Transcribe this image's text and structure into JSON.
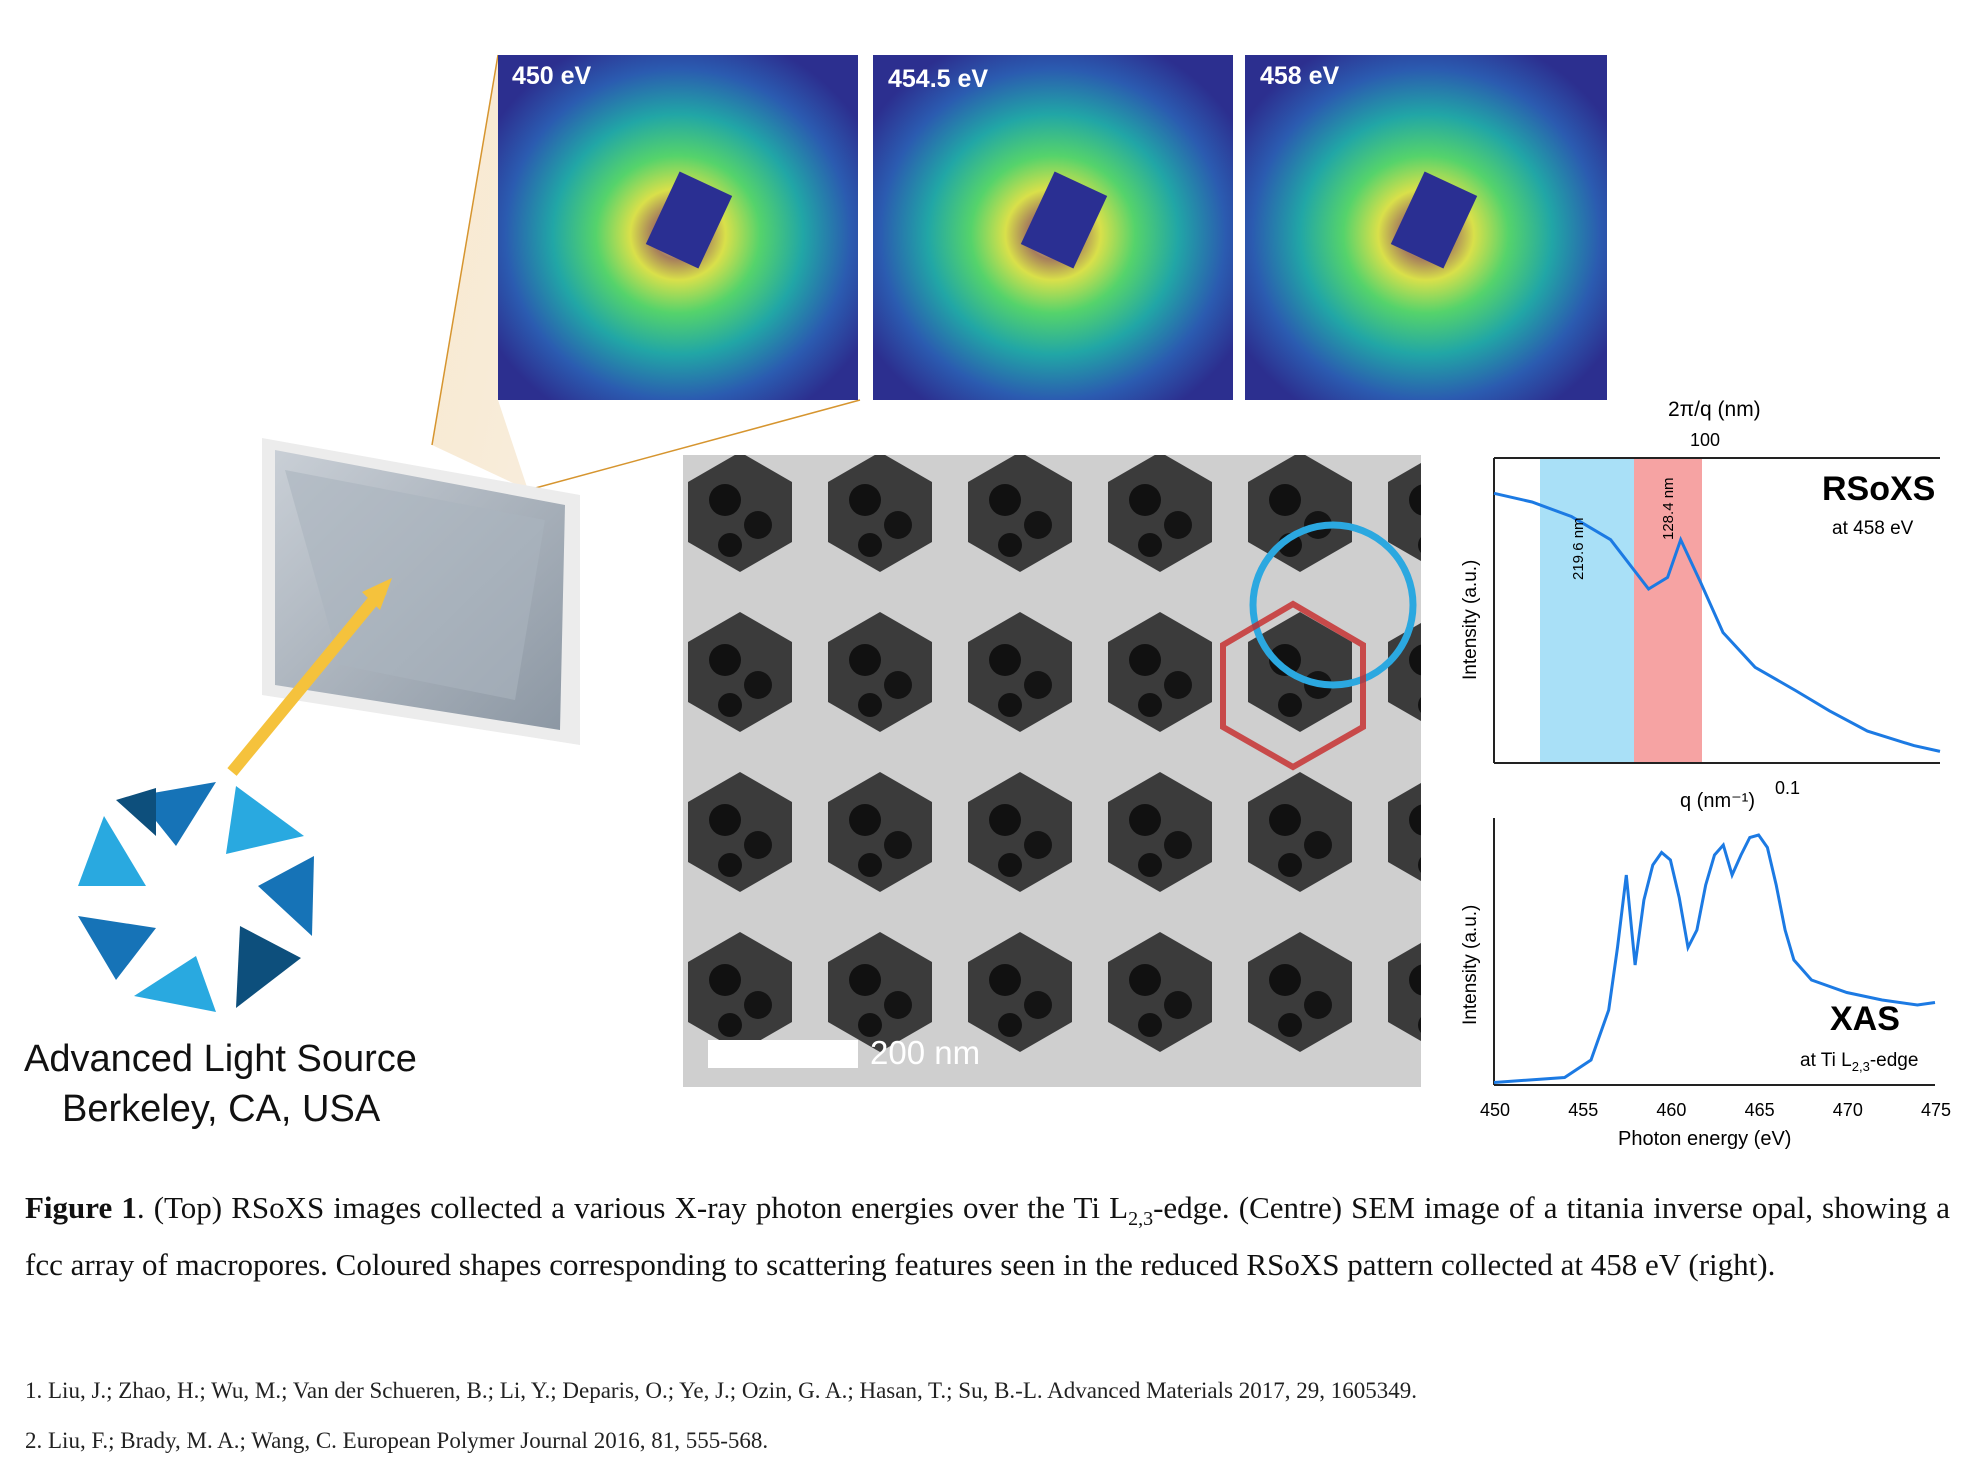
{
  "rsoxs_panels": [
    {
      "label": "450 eV"
    },
    {
      "label": "454.5 eV"
    },
    {
      "label": "458 eV"
    }
  ],
  "sem": {
    "scale_label": "200 nm"
  },
  "logo": {
    "line1": "Advanced Light Source",
    "line2": "Berkeley, CA, USA"
  },
  "chart_data": [
    {
      "type": "line",
      "title": "RSoXS",
      "subtitle": "at 458 eV",
      "xlabel": "q (nm⁻¹)",
      "x_top_label": "2π/q (nm)",
      "x_top_tick": "100",
      "x_tick": "0.1",
      "ylabel": "Intensity (a.u.)",
      "xscale": "log",
      "annotations": [
        {
          "text": "219.6 nm",
          "color": "#9fdcf5"
        },
        {
          "text": "128.4 nm",
          "color": "#f6a3a3"
        }
      ],
      "series": [
        {
          "x": [
            0.02,
            0.024,
            0.029,
            0.035,
            0.042,
            0.046,
            0.049,
            0.054,
            0.06,
            0.07,
            0.085,
            0.1,
            0.12,
            0.15,
            0.17
          ],
          "y": [
            0.93,
            0.9,
            0.85,
            0.77,
            0.6,
            0.64,
            0.77,
            0.62,
            0.45,
            0.33,
            0.25,
            0.18,
            0.11,
            0.06,
            0.04
          ]
        }
      ]
    },
    {
      "type": "line",
      "title": "XAS",
      "subtitle_parts": [
        "at Ti L",
        "2,3",
        "-edge"
      ],
      "xlabel": "Photon energy (eV)",
      "ylabel": "Intensity (a.u.)",
      "xlim": [
        450,
        475
      ],
      "xticks": [
        "450",
        "455",
        "460",
        "465",
        "470",
        "475"
      ],
      "series": [
        {
          "x": [
            450,
            454,
            455.5,
            456.5,
            457,
            457.5,
            458,
            458.5,
            459,
            459.5,
            460,
            460.5,
            461,
            461.5,
            462,
            462.5,
            463,
            463.5,
            464,
            464.5,
            465,
            465.5,
            466,
            466.5,
            467,
            468,
            470,
            472,
            474,
            475
          ],
          "y": [
            0.01,
            0.03,
            0.1,
            0.3,
            0.55,
            0.84,
            0.48,
            0.74,
            0.88,
            0.93,
            0.9,
            0.75,
            0.55,
            0.62,
            0.8,
            0.92,
            0.96,
            0.84,
            0.92,
            0.99,
            1.0,
            0.95,
            0.8,
            0.62,
            0.5,
            0.42,
            0.37,
            0.34,
            0.32,
            0.33
          ]
        }
      ]
    }
  ],
  "caption": {
    "bold": "Figure 1",
    "text_a": ".  (Top) RSoXS images collected a various X-ray photon energies over the Ti L",
    "sub": "2,3",
    "text_b": "-edge. (Centre) SEM image of a titania inverse opal, showing a fcc array of macropores. Coloured shapes corresponding to scattering features seen in the reduced RSoXS pattern collected at 458 eV (right)."
  },
  "references": [
    "1. Liu, J.; Zhao, H.; Wu, M.; Van der Schueren, B.; Li, Y.; Deparis, O.; Ye, J.; Ozin, G. A.; Hasan, T.; Su, B.-L. Advanced Materials 2017, 29, 1605349.",
    "2. Liu, F.; Brady, M. A.; Wang, C. European Polymer Journal 2016, 81, 555-568."
  ]
}
